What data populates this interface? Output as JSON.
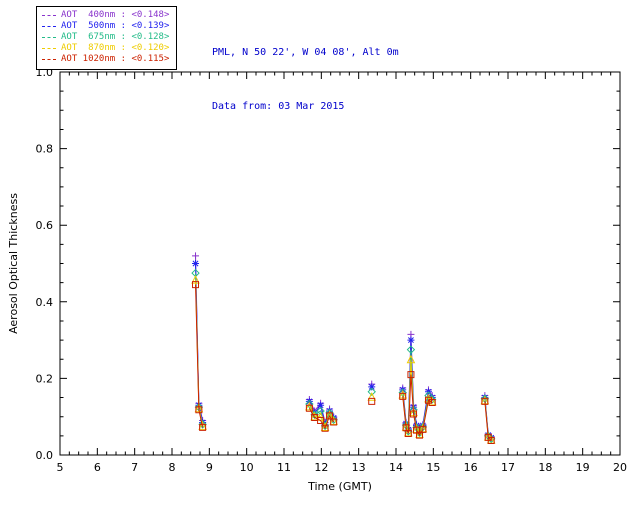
{
  "header": {
    "line1": "PML, N 50 22', W 04 08', Alt 0m",
    "line2": "Data from: 03 Mar 2015",
    "color": "#0000cc"
  },
  "legend": {
    "items": [
      {
        "label": "AOT  400nm : <0.148>",
        "color": "#8833cc"
      },
      {
        "label": "AOT  500nm : <0.139>",
        "color": "#2222ee"
      },
      {
        "label": "AOT  675nm : <0.128>",
        "color": "#22bb88"
      },
      {
        "label": "AOT  870nm : <0.120>",
        "color": "#eecc00"
      },
      {
        "label": "AOT 1020nm : <0.115>",
        "color": "#cc2200"
      }
    ]
  },
  "chart_data": {
    "type": "line",
    "title": "",
    "xlabel": "Time (GMT)",
    "ylabel": "Aerosol Optical Thickness",
    "xlim": [
      5,
      20
    ],
    "ylim": [
      0.0,
      1.0
    ],
    "xticks": [
      5,
      6,
      7,
      8,
      9,
      10,
      11,
      12,
      13,
      14,
      15,
      16,
      17,
      18,
      19,
      20
    ],
    "yticks": [
      0.0,
      0.2,
      0.4,
      0.6,
      0.8,
      1.0
    ],
    "grid": false,
    "legend_position": "top-left",
    "series": [
      {
        "name": "AOT 400nm",
        "mean": "<0.148>",
        "color": "#8833cc",
        "marker": "plus",
        "segments": [
          {
            "x": [
              8.63,
              8.72,
              8.82
            ],
            "y": [
              0.52,
              0.135,
              0.09
            ]
          },
          {
            "x": [
              11.68,
              11.82,
              11.98,
              12.1,
              12.22,
              12.33
            ],
            "y": [
              0.145,
              0.115,
              0.135,
              0.085,
              0.12,
              0.1
            ]
          },
          {
            "x": [
              13.35
            ],
            "y": [
              0.185
            ]
          },
          {
            "x": [
              14.18,
              14.27,
              14.33,
              14.4,
              14.47,
              14.55,
              14.63,
              14.72,
              14.87,
              14.97
            ],
            "y": [
              0.175,
              0.085,
              0.07,
              0.315,
              0.13,
              0.08,
              0.065,
              0.08,
              0.17,
              0.155
            ]
          },
          {
            "x": [
              16.38,
              16.47,
              16.55
            ],
            "y": [
              0.155,
              0.055,
              0.048
            ]
          }
        ]
      },
      {
        "name": "AOT 500nm",
        "mean": "<0.139>",
        "color": "#2222ee",
        "marker": "asterisk",
        "segments": [
          {
            "x": [
              8.63,
              8.72,
              8.82
            ],
            "y": [
              0.5,
              0.13,
              0.085
            ]
          },
          {
            "x": [
              11.68,
              11.82,
              11.98,
              12.1,
              12.22,
              12.33
            ],
            "y": [
              0.14,
              0.11,
              0.13,
              0.08,
              0.115,
              0.097
            ]
          },
          {
            "x": [
              13.35
            ],
            "y": [
              0.178
            ]
          },
          {
            "x": [
              14.18,
              14.27,
              14.33,
              14.4,
              14.47,
              14.55,
              14.63,
              14.72,
              14.87,
              14.97
            ],
            "y": [
              0.17,
              0.082,
              0.066,
              0.3,
              0.125,
              0.077,
              0.062,
              0.077,
              0.165,
              0.15
            ]
          },
          {
            "x": [
              16.38,
              16.47,
              16.55
            ],
            "y": [
              0.15,
              0.052,
              0.045
            ]
          }
        ]
      },
      {
        "name": "AOT 675nm",
        "mean": "<0.128>",
        "color": "#22bb88",
        "marker": "diamond",
        "segments": [
          {
            "x": [
              8.63,
              8.72,
              8.82
            ],
            "y": [
              0.475,
              0.125,
              0.08
            ]
          },
          {
            "x": [
              11.68,
              11.82,
              11.98,
              12.1,
              12.22,
              12.33
            ],
            "y": [
              0.133,
              0.105,
              0.115,
              0.076,
              0.11,
              0.092
            ]
          },
          {
            "x": [
              13.35
            ],
            "y": [
              0.165
            ]
          },
          {
            "x": [
              14.18,
              14.27,
              14.33,
              14.4,
              14.47,
              14.55,
              14.63,
              14.72,
              14.87,
              14.97
            ],
            "y": [
              0.163,
              0.078,
              0.062,
              0.275,
              0.118,
              0.072,
              0.058,
              0.073,
              0.155,
              0.145
            ]
          },
          {
            "x": [
              16.38,
              16.47,
              16.55
            ],
            "y": [
              0.147,
              0.05,
              0.042
            ]
          }
        ]
      },
      {
        "name": "AOT 870nm",
        "mean": "<0.120>",
        "color": "#eecc00",
        "marker": "triangle",
        "segments": [
          {
            "x": [
              8.63,
              8.72,
              8.82
            ],
            "y": [
              0.458,
              0.122,
              0.076
            ]
          },
          {
            "x": [
              11.68,
              11.82,
              11.98,
              12.1,
              12.22,
              12.33
            ],
            "y": [
              0.127,
              0.101,
              0.1,
              0.073,
              0.105,
              0.089
            ]
          },
          {
            "x": [
              13.35
            ],
            "y": [
              0.152
            ]
          },
          {
            "x": [
              14.18,
              14.27,
              14.33,
              14.4,
              14.47,
              14.55,
              14.63,
              14.72,
              14.87,
              14.97
            ],
            "y": [
              0.158,
              0.074,
              0.059,
              0.25,
              0.112,
              0.068,
              0.055,
              0.07,
              0.148,
              0.14
            ]
          },
          {
            "x": [
              16.38,
              16.47,
              16.55
            ],
            "y": [
              0.143,
              0.048,
              0.04
            ]
          }
        ]
      },
      {
        "name": "AOT 1020nm",
        "mean": "<0.115>",
        "color": "#cc2200",
        "marker": "square",
        "segments": [
          {
            "x": [
              8.63,
              8.72,
              8.82
            ],
            "y": [
              0.445,
              0.118,
              0.072
            ]
          },
          {
            "x": [
              11.68,
              11.82,
              11.98,
              12.1,
              12.22,
              12.33
            ],
            "y": [
              0.122,
              0.098,
              0.09,
              0.07,
              0.102,
              0.086
            ]
          },
          {
            "x": [
              13.35
            ],
            "y": [
              0.14
            ]
          },
          {
            "x": [
              14.18,
              14.27,
              14.33,
              14.4,
              14.47,
              14.55,
              14.63,
              14.72,
              14.87,
              14.97
            ],
            "y": [
              0.153,
              0.071,
              0.056,
              0.21,
              0.107,
              0.065,
              0.052,
              0.067,
              0.143,
              0.137
            ]
          },
          {
            "x": [
              16.38,
              16.47,
              16.55
            ],
            "y": [
              0.14,
              0.046,
              0.038
            ]
          }
        ]
      }
    ]
  }
}
